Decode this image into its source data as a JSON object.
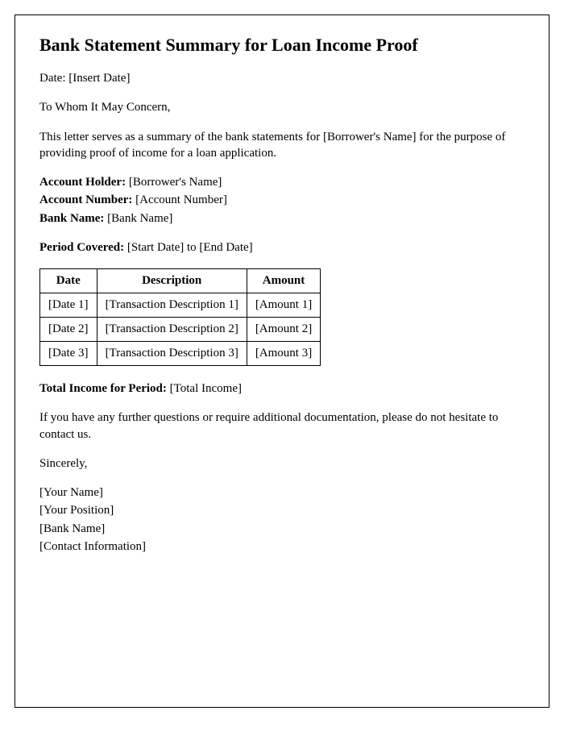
{
  "title": "Bank Statement Summary for Loan Income Proof",
  "date_label": "Date: ",
  "date_value": "[Insert Date]",
  "salutation": "To Whom It May Concern,",
  "intro": "This letter serves as a summary of the bank statements for [Borrower's Name] for the purpose of providing proof of income for a loan application.",
  "account": {
    "holder_label": "Account Holder: ",
    "holder_value": "[Borrower's Name]",
    "number_label": "Account Number: ",
    "number_value": "[Account Number]",
    "bank_label": "Bank Name: ",
    "bank_value": "[Bank Name]"
  },
  "period_label": "Period Covered: ",
  "period_value": "[Start Date] to [End Date]",
  "table": {
    "columns": [
      "Date",
      "Description",
      "Amount"
    ],
    "rows": [
      [
        "[Date 1]",
        "[Transaction Description 1]",
        "[Amount 1]"
      ],
      [
        "[Date 2]",
        "[Transaction Description 2]",
        "[Amount 2]"
      ],
      [
        "[Date 3]",
        "[Transaction Description 3]",
        "[Amount 3]"
      ]
    ]
  },
  "total_label": "Total Income for Period: ",
  "total_value": "[Total Income]",
  "closing": "If you have any further questions or require additional documentation, please do not hesitate to contact us.",
  "signoff": "Sincerely,",
  "signature": {
    "name": "[Your Name]",
    "position": "[Your Position]",
    "bank": "[Bank Name]",
    "contact": "[Contact Information]"
  }
}
